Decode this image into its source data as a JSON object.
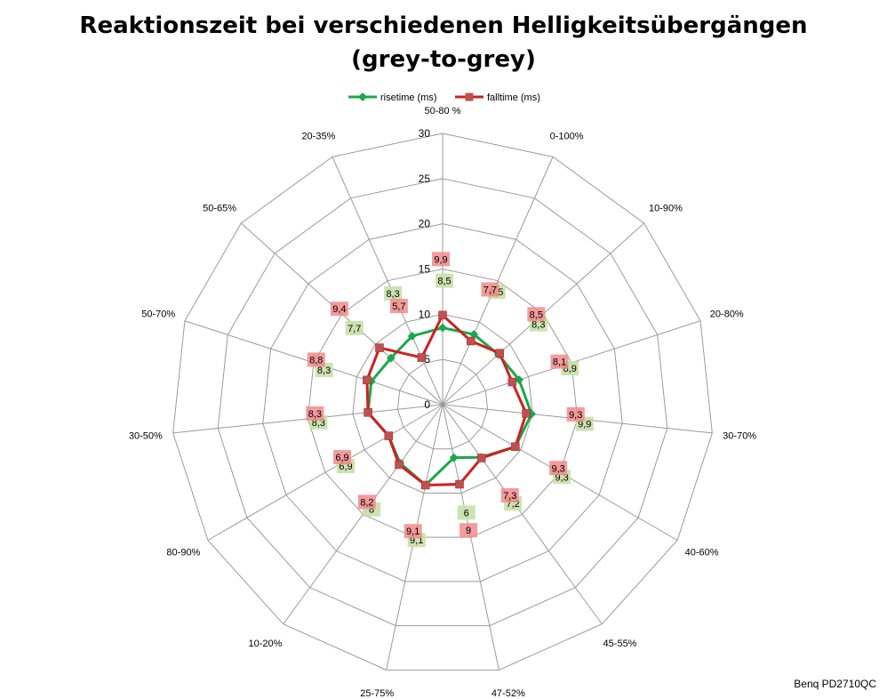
{
  "chart_data": {
    "type": "radar",
    "title_line1": "Reaktionszeit bei verschiedenen Helligkeitsübergängen",
    "title_line2": "(grey-to-grey)",
    "categories": [
      "50-80 %",
      "0-100%",
      "10-90%",
      "20-80%",
      "30-70%",
      "40-60%",
      "45-55%",
      "47-52%",
      "25-75%",
      "10-20%",
      "80-90%",
      "30-50%",
      "50-70%",
      "50-65%",
      "20-35%"
    ],
    "rlim": [
      0,
      30
    ],
    "ticks": [
      "0",
      "5",
      "10",
      "15",
      "20",
      "25",
      "30"
    ],
    "grid": true,
    "legend_position": "top",
    "series": [
      {
        "name": "risetime (ms)",
        "color": "#1aa84a",
        "label_bg": "#c6e0a8",
        "values": [
          8.5,
          8.5,
          8.3,
          8.9,
          9.9,
          9.3,
          7.2,
          6,
          9.1,
          8,
          6.9,
          8.3,
          8.3,
          7.7,
          8.3
        ],
        "labels": [
          "8,5",
          "8,5",
          "8,3",
          "8,9",
          "9,9",
          "9,3",
          "7,2",
          "6",
          "9,1",
          "8",
          "6,9",
          "8,3",
          "8,3",
          "7,7",
          "8,3"
        ]
      },
      {
        "name": "falltime (ms)",
        "color": "#d01f1f",
        "label_bg": "#f2898a",
        "values": [
          9.9,
          7.7,
          8.5,
          8.1,
          9.3,
          9.3,
          7.3,
          9,
          9.1,
          8.2,
          6.9,
          8.3,
          8.8,
          9.4,
          5.7
        ],
        "labels": [
          "9,9",
          "7,7",
          "8,5",
          "8,1",
          "9,3",
          "9,3",
          "7,3",
          "9",
          "9,1",
          "8,2",
          "6,9",
          "8,3",
          "8,8",
          "9,4",
          "5,7"
        ]
      }
    ]
  },
  "credit": "Benq PD2710QC"
}
